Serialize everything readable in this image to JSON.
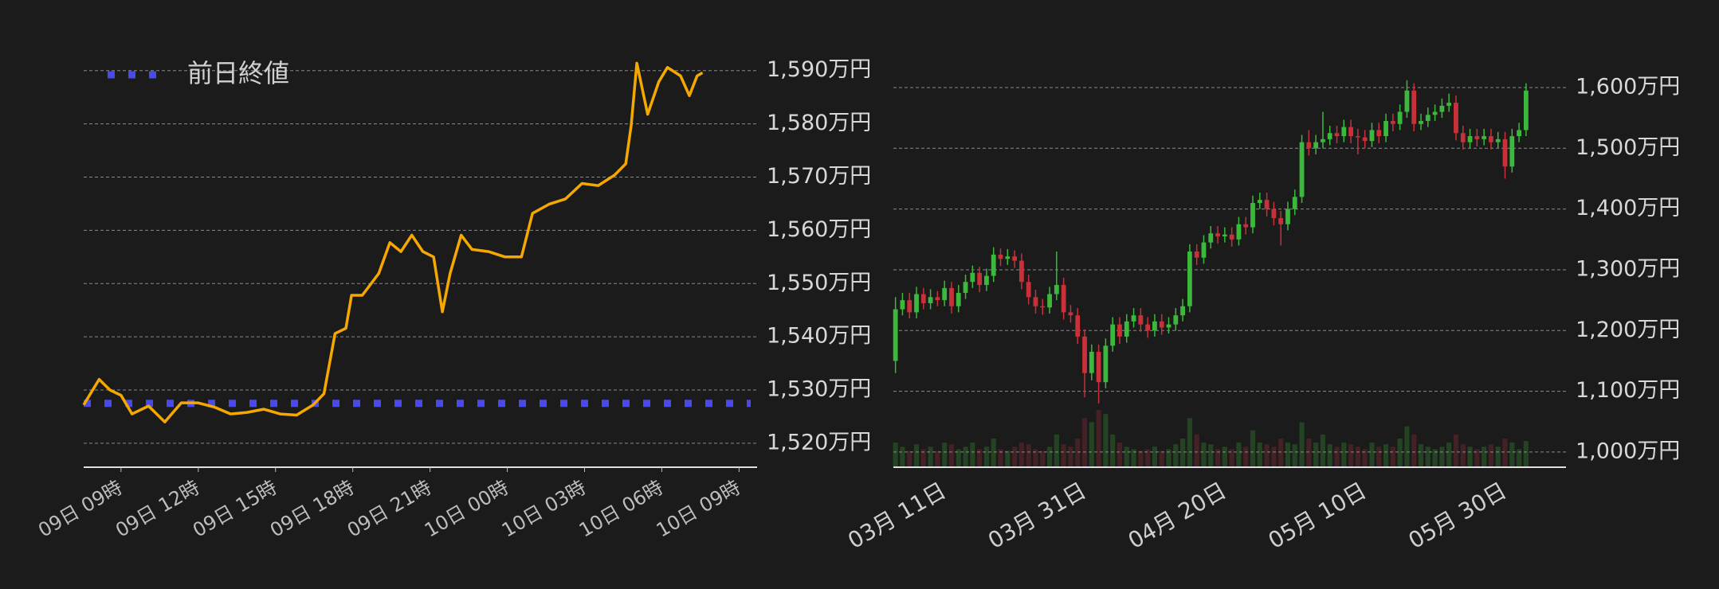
{
  "chart_data": [
    {
      "type": "line",
      "color": "#f5a800",
      "x": [
        7.55,
        8.15,
        8.57,
        9,
        9.43,
        10.07,
        10.7,
        11.34,
        11.98,
        12.62,
        13.26,
        13.9,
        14.54,
        15.18,
        15.82,
        16.46,
        16.88,
        17.31,
        17.73,
        17.95,
        18.37,
        19.01,
        19.44,
        19.87,
        20.29,
        20.72,
        21.14,
        21.48,
        21.78,
        22.21,
        22.63,
        23.27,
        23.91,
        24.55,
        24.98,
        25.62,
        26.26,
        26.9,
        27.53,
        28.17,
        28.6,
        28.81,
        29.03,
        29.45,
        29.88,
        30.22,
        30.73,
        31.07,
        31.37,
        31.58
      ],
      "values": [
        1527.2,
        1532,
        1530,
        1529,
        1525.5,
        1527,
        1524,
        1527.6,
        1527.6,
        1526.8,
        1525.5,
        1525.8,
        1526.4,
        1525.5,
        1525.3,
        1527.2,
        1529.3,
        1540.6,
        1541.6,
        1547.8,
        1547.8,
        1551.9,
        1557.7,
        1556,
        1559.1,
        1556,
        1555,
        1544.7,
        1551.9,
        1559.1,
        1556.4,
        1556,
        1555,
        1555,
        1563.2,
        1564.9,
        1565.9,
        1568.8,
        1568.4,
        1570.4,
        1572.5,
        1579.7,
        1591.4,
        1581.8,
        1587.9,
        1590.6,
        1589,
        1585.3,
        1589,
        1589.6
      ],
      "reference_line": {
        "name": "前日終値",
        "value": 1527.5,
        "color": "#4a4ae8"
      },
      "legend": "upper left",
      "xlim": [
        7.55,
        33.7
      ],
      "xticks": [
        {
          "value": 9,
          "label": "09日 09時"
        },
        {
          "value": 12,
          "label": "09日 12時"
        },
        {
          "value": 15,
          "label": "09日 15時"
        },
        {
          "value": 18,
          "label": "09日 18時"
        },
        {
          "value": 21,
          "label": "09日 21時"
        },
        {
          "value": 24,
          "label": "10日 00時"
        },
        {
          "value": 27,
          "label": "10日 03時"
        },
        {
          "value": 30,
          "label": "10日 06時"
        },
        {
          "value": 33,
          "label": "10日 09時"
        }
      ],
      "ylim": [
        1515.5,
        1592.5
      ],
      "yticks": [
        {
          "value": 1520,
          "label": "1,520万円"
        },
        {
          "value": 1530,
          "label": "1,530万円"
        },
        {
          "value": 1540,
          "label": "1,540万円"
        },
        {
          "value": 1550,
          "label": "1,550万円"
        },
        {
          "value": 1560,
          "label": "1,560万円"
        },
        {
          "value": 1570,
          "label": "1,570万円"
        },
        {
          "value": 1580,
          "label": "1,580万円"
        },
        {
          "value": 1590,
          "label": "1,590万円"
        }
      ],
      "grid": true
    },
    {
      "type": "candlestick",
      "up_color": "#3cb83c",
      "down_color": "#c8303a",
      "categories": [
        null,
        null,
        null,
        null,
        null,
        null,
        null,
        "03月 11日",
        null,
        null,
        null,
        null,
        null,
        null,
        null,
        null,
        null,
        null,
        null,
        null,
        null,
        null,
        null,
        null,
        null,
        null,
        null,
        "03月 31日",
        null,
        null,
        null,
        null,
        null,
        null,
        null,
        null,
        null,
        null,
        null,
        null,
        null,
        null,
        null,
        null,
        null,
        null,
        null,
        "04月 20日",
        null,
        null,
        null,
        null,
        null,
        null,
        null,
        null,
        null,
        null,
        null,
        null,
        null,
        null,
        null,
        null,
        null,
        null,
        null,
        "05月 10日",
        null,
        null,
        null,
        null,
        null,
        null,
        null,
        null,
        null,
        null,
        null,
        null,
        null,
        null,
        null,
        null,
        null,
        null,
        null,
        "05月 30日",
        null,
        null,
        null
      ],
      "open": [
        1150,
        1235,
        1250,
        1230,
        1260,
        1245,
        1255,
        1250,
        1270,
        1240,
        1262,
        1280,
        1295,
        1275,
        1290,
        1325,
        1318,
        1322,
        1315,
        1280,
        1255,
        1240,
        1238,
        1260,
        1275,
        1230,
        1225,
        1190,
        1130,
        1165,
        1115,
        1175,
        1210,
        1190,
        1215,
        1225,
        1210,
        1200,
        1215,
        1205,
        1210,
        1225,
        1240,
        1330,
        1320,
        1345,
        1360,
        1355,
        1358,
        1350,
        1375,
        1370,
        1410,
        1415,
        1400,
        1385,
        1375,
        1400,
        1420,
        1510,
        1500,
        1510,
        1515,
        1525,
        1520,
        1535,
        1520,
        1518,
        1512,
        1530,
        1520,
        1545,
        1540,
        1560,
        1595,
        1540,
        1545,
        1555,
        1560,
        1570,
        1575,
        1525,
        1510,
        1520,
        1515,
        1520,
        1510,
        1515,
        1470,
        1520,
        1530
      ],
      "high": [
        1255,
        1262,
        1262,
        1272,
        1270,
        1268,
        1265,
        1282,
        1280,
        1275,
        1292,
        1307,
        1305,
        1302,
        1337,
        1335,
        1334,
        1332,
        1327,
        1292,
        1267,
        1252,
        1272,
        1330,
        1287,
        1242,
        1237,
        1202,
        1177,
        1177,
        1187,
        1222,
        1222,
        1227,
        1237,
        1237,
        1222,
        1227,
        1227,
        1222,
        1237,
        1252,
        1342,
        1342,
        1357,
        1372,
        1372,
        1370,
        1370,
        1387,
        1387,
        1422,
        1427,
        1427,
        1412,
        1397,
        1412,
        1432,
        1522,
        1530,
        1522,
        1560,
        1537,
        1537,
        1547,
        1547,
        1532,
        1530,
        1542,
        1542,
        1557,
        1557,
        1572,
        1612,
        1607,
        1557,
        1567,
        1572,
        1582,
        1590,
        1587,
        1537,
        1532,
        1532,
        1532,
        1532,
        1527,
        1527,
        1532,
        1542,
        1607
      ],
      "low": [
        1130,
        1225,
        1220,
        1220,
        1235,
        1235,
        1240,
        1240,
        1228,
        1230,
        1252,
        1270,
        1263,
        1265,
        1280,
        1306,
        1308,
        1303,
        1268,
        1243,
        1228,
        1226,
        1228,
        1250,
        1218,
        1213,
        1178,
        1090,
        1118,
        1080,
        1105,
        1165,
        1178,
        1180,
        1205,
        1198,
        1188,
        1190,
        1193,
        1195,
        1200,
        1215,
        1230,
        1308,
        1310,
        1335,
        1343,
        1345,
        1338,
        1340,
        1358,
        1360,
        1400,
        1388,
        1373,
        1340,
        1365,
        1390,
        1410,
        1488,
        1490,
        1500,
        1505,
        1508,
        1510,
        1508,
        1490,
        1500,
        1502,
        1508,
        1510,
        1528,
        1530,
        1550,
        1528,
        1530,
        1535,
        1545,
        1550,
        1560,
        1513,
        1498,
        1500,
        1503,
        1505,
        1498,
        1500,
        1450,
        1460,
        1510,
        1520
      ],
      "close": [
        1235,
        1250,
        1230,
        1260,
        1245,
        1255,
        1250,
        1270,
        1240,
        1262,
        1280,
        1295,
        1275,
        1290,
        1325,
        1318,
        1322,
        1315,
        1280,
        1255,
        1240,
        1238,
        1260,
        1275,
        1230,
        1225,
        1190,
        1130,
        1165,
        1115,
        1175,
        1210,
        1190,
        1215,
        1225,
        1210,
        1200,
        1215,
        1205,
        1210,
        1225,
        1240,
        1330,
        1320,
        1345,
        1360,
        1355,
        1358,
        1350,
        1375,
        1370,
        1410,
        1415,
        1400,
        1385,
        1375,
        1400,
        1420,
        1510,
        1500,
        1510,
        1515,
        1525,
        1520,
        1535,
        1520,
        1518,
        1512,
        1530,
        1520,
        1545,
        1540,
        1560,
        1595,
        1540,
        1545,
        1555,
        1560,
        1570,
        1575,
        1525,
        1510,
        1520,
        1515,
        1520,
        1510,
        1515,
        1470,
        1520,
        1530,
        1595
      ],
      "volume": [
        30,
        25,
        20,
        28,
        22,
        25,
        20,
        30,
        28,
        22,
        25,
        30,
        22,
        25,
        35,
        22,
        20,
        25,
        30,
        28,
        22,
        20,
        25,
        40,
        28,
        25,
        35,
        60,
        55,
        70,
        65,
        40,
        30,
        25,
        22,
        20,
        22,
        25,
        20,
        22,
        28,
        35,
        60,
        40,
        30,
        28,
        22,
        25,
        22,
        30,
        25,
        45,
        30,
        28,
        25,
        35,
        30,
        28,
        55,
        35,
        30,
        40,
        28,
        25,
        30,
        28,
        25,
        22,
        30,
        25,
        28,
        25,
        35,
        50,
        40,
        28,
        25,
        22,
        25,
        30,
        40,
        28,
        25,
        22,
        25,
        28,
        25,
        35,
        30,
        22,
        32
      ],
      "ylim": [
        975,
        1636
      ],
      "yticks": [
        {
          "value": 1000,
          "label": "1,000万円"
        },
        {
          "value": 1100,
          "label": "1,100万円"
        },
        {
          "value": 1200,
          "label": "1,200万円"
        },
        {
          "value": 1300,
          "label": "1,300万円"
        },
        {
          "value": 1400,
          "label": "1,400万円"
        },
        {
          "value": 1500,
          "label": "1,500万円"
        },
        {
          "value": 1600,
          "label": "1,600万円"
        }
      ],
      "grid": true
    }
  ]
}
